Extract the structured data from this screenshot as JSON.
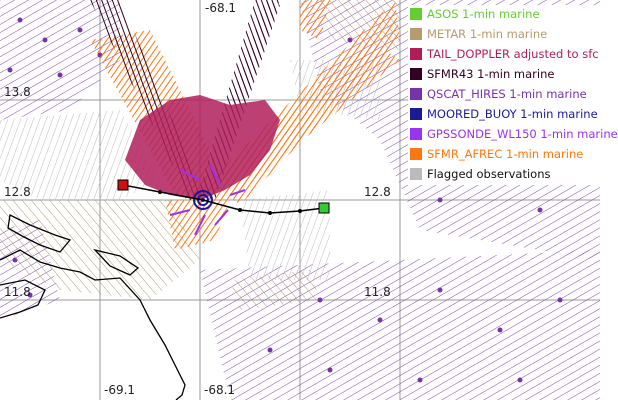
{
  "map": {
    "lon_labels_top": [
      "-68.1"
    ],
    "lon_labels_bottom": [
      "-69.1",
      "-68.1"
    ],
    "lat_labels_left": [
      "13.8",
      "12.8",
      "11.8"
    ],
    "lat_labels_right": [
      "12.8",
      "11.8"
    ]
  },
  "legend": {
    "items": [
      {
        "label": "ASOS 1-min marine",
        "color": "#66cc33",
        "text_color": "#66cc33"
      },
      {
        "label": "METAR 1-min marine",
        "color": "#b59b6d",
        "text_color": "#b59b6d"
      },
      {
        "label": "TAIL_DOPPLER adjusted to sfc",
        "color": "#b01e5a",
        "text_color": "#b01e5a"
      },
      {
        "label": "SFMR43 1-min marine",
        "color": "#330022",
        "text_color": "#330022"
      },
      {
        "label": "QSCAT_HIRES 1-min marine",
        "color": "#7733aa",
        "text_color": "#7733aa"
      },
      {
        "label": "MOORED_BUOY 1-min marine",
        "color": "#1a1a99",
        "text_color": "#1a1a99"
      },
      {
        "label": "GPSSONDE_WL150 1-min marine",
        "color": "#9933ee",
        "text_color": "#9933ee"
      },
      {
        "label": "SFMR_AFREC 1-min marine",
        "color": "#ff7711",
        "text_color": "#ff7711"
      },
      {
        "label": "Flagged observations",
        "color": "#bbbbbb",
        "text_color": "#111111"
      }
    ]
  }
}
